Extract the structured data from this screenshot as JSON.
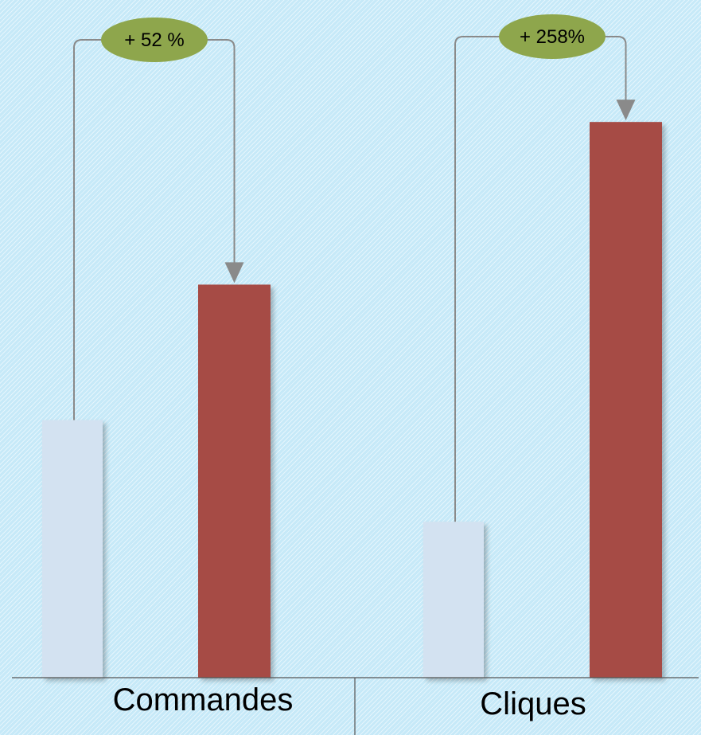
{
  "chart_data": {
    "type": "bar",
    "categories": [
      "Commandes",
      "Cliques"
    ],
    "series": [
      {
        "values": [
          38,
          23
        ]
      },
      {
        "values": [
          58,
          82
        ]
      }
    ],
    "annotations": [
      "+ 52 %",
      "+ 258%"
    ],
    "ylim": [
      0,
      100
    ],
    "grid": false,
    "colors": {
      "before": "#d3e2f1",
      "after": "#a64b44",
      "badge": "#8ea64c",
      "connector": "#8a8a8a",
      "axis": "#555555"
    }
  }
}
